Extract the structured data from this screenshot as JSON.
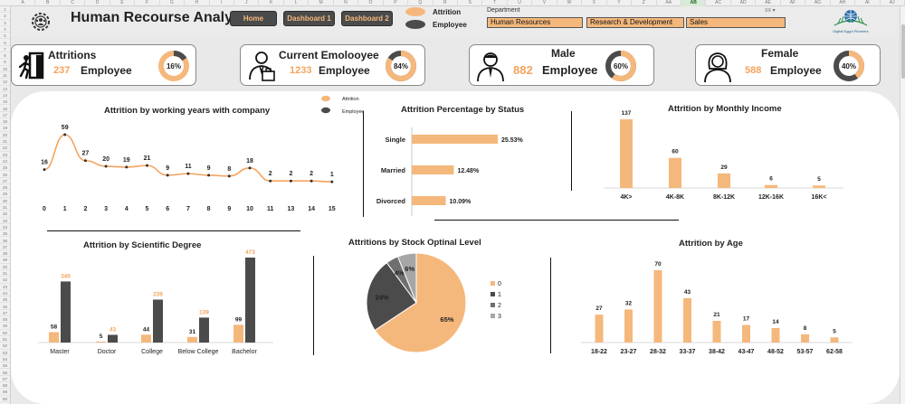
{
  "header": {
    "title": "Human Recourse Analytics",
    "nav": [
      "Home",
      "Dashboard 1",
      "Dashboard 2"
    ],
    "legend": [
      {
        "label": "Attrition",
        "color": "#f5b87c"
      },
      {
        "label": "Employee",
        "color": "#4b4b4b"
      }
    ],
    "department_label": "Department",
    "departments": [
      "Human Resources",
      "Research & Development",
      "Sales"
    ],
    "logo_text": "Digital Egypt Pioneers"
  },
  "spreadsheet": {
    "columns": [
      "A",
      "B",
      "C",
      "D",
      "E",
      "F",
      "G",
      "H",
      "I",
      "J",
      "K",
      "L",
      "M",
      "N",
      "O",
      "P",
      "Q",
      "R",
      "S",
      "T",
      "U",
      "V",
      "W",
      "X",
      "Y",
      "Z",
      "AA",
      "AB",
      "AC",
      "AD",
      "AE",
      "AF",
      "AG",
      "AH",
      "AI",
      "AJ"
    ],
    "selected_column": "AB",
    "rows": [
      "1",
      "2",
      "3",
      "4",
      "5",
      "6",
      "7",
      "8",
      "9",
      "10",
      "11",
      "12",
      "13",
      "14",
      "15",
      "16",
      "17",
      "18",
      "19",
      "20",
      "21",
      "22",
      "23",
      "24",
      "25",
      "26",
      "27",
      "28",
      "29",
      "30",
      "31",
      "32",
      "33",
      "34",
      "35",
      "36",
      "37",
      "38",
      "39",
      "40",
      "41",
      "42",
      "43",
      "44",
      "45",
      "46",
      "47",
      "48",
      "49",
      "50",
      "51",
      "52",
      "53",
      "54",
      "55",
      "56",
      "57",
      "58",
      "59",
      "60"
    ]
  },
  "kpis": [
    {
      "label": "Attritions",
      "value": "237",
      "unit": "Employee",
      "percent": "16%",
      "fraction": 0.16,
      "icon": "exit-door-icon"
    },
    {
      "label": "Current Emolooyee",
      "value": "1233",
      "unit": "Employee",
      "percent": "84%",
      "fraction": 0.84,
      "icon": "employee-briefcase-icon"
    },
    {
      "label": "Male",
      "value": "882",
      "unit": "Employee",
      "percent": "60%",
      "fraction": 0.6,
      "icon": "male-person-icon"
    },
    {
      "label": "Female",
      "value": "588",
      "unit": "Employee",
      "percent": "40%",
      "fraction": 0.4,
      "icon": "female-person-icon"
    }
  ],
  "colors": {
    "accent": "#f5b87c",
    "accent_dark": "#f5a35c",
    "dark": "#4b4b4b",
    "grey": "#a6a6a6"
  },
  "chart_data": [
    {
      "type": "line",
      "title": "Attrition by working years with company",
      "legend": [
        "Attrition",
        "Employee"
      ],
      "x": [
        "0",
        "1",
        "2",
        "3",
        "4",
        "5",
        "6",
        "7",
        "8",
        "9",
        "10",
        "11",
        "13",
        "14",
        "15"
      ],
      "values": [
        16,
        59,
        27,
        20,
        19,
        21,
        9,
        11,
        9,
        8,
        18,
        2,
        2,
        2,
        1
      ]
    },
    {
      "type": "bar",
      "orientation": "horizontal",
      "title": "Attrition Percentage by Status",
      "categories": [
        "Single",
        "Married",
        "Divorced"
      ],
      "values": [
        25.53,
        12.48,
        10.09
      ],
      "labels": [
        "25.53%",
        "12.48%",
        "10.09%"
      ]
    },
    {
      "type": "bar",
      "title": "Attrition by Monthly Income",
      "categories": [
        "4K>",
        "4K-8K",
        "8K-12K",
        "12K-16K",
        "16K<"
      ],
      "values": [
        137,
        60,
        29,
        6,
        5
      ]
    },
    {
      "type": "bar",
      "title": "Attrition by Scientific Degree",
      "categories": [
        "Master",
        "Doctor",
        "College",
        "Below College",
        "Bachelor"
      ],
      "series": [
        {
          "name": "Attrition",
          "values": [
            58,
            5,
            44,
            31,
            99
          ]
        },
        {
          "name": "Employee",
          "values": [
            340,
            43,
            239,
            139,
            473
          ]
        }
      ]
    },
    {
      "type": "pie",
      "title": "Attritions by Stock Optinal Level",
      "categories": [
        "0",
        "1",
        "2",
        "3"
      ],
      "values": [
        65,
        24,
        4,
        6
      ],
      "labels": [
        "65%",
        "24%",
        "4%",
        "6%"
      ],
      "colors": [
        "#f5b87c",
        "#4b4b4b",
        "#6f6f6f",
        "#a6a6a6"
      ]
    },
    {
      "type": "bar",
      "title": "Attrition by Age",
      "categories": [
        "18-22",
        "23-27",
        "28-32",
        "33-37",
        "38-42",
        "43-47",
        "48-52",
        "53-57",
        "62-58"
      ],
      "values": [
        27,
        32,
        70,
        43,
        21,
        17,
        14,
        8,
        5
      ]
    }
  ]
}
